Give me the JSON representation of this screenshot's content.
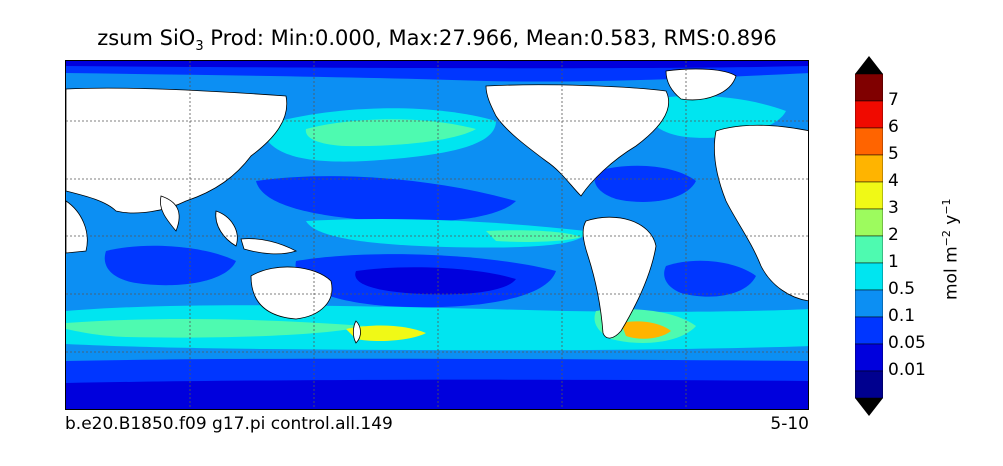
{
  "title": {
    "prefix": "zsum SiO",
    "subscript": "3",
    "suffix": "  Prod: Min:0.000, Max:27.966, Mean:0.583, RMS:0.896"
  },
  "footer": {
    "case_name": "b.e20.B1850.f09 g17.pi control.all.149",
    "years": "5-10"
  },
  "colorbar": {
    "units_prefix": "mol m",
    "units_exp1": "−2",
    "units_mid": " y",
    "units_exp2": "−1",
    "levels": [
      "0.01",
      "0.05",
      "0.1",
      "0.5",
      "1",
      "2",
      "3",
      "4",
      "5",
      "6",
      "7"
    ],
    "colors": [
      "#00008f",
      "#0000dd",
      "#0036ff",
      "#0c8ff3",
      "#00e5f0",
      "#4efab0",
      "#9dfb5e",
      "#f0f916",
      "#ffb400",
      "#ff6400",
      "#f00a00",
      "#800000"
    ]
  },
  "colors": {
    "land": "#ffffff",
    "deep_low": "#0036ff",
    "mid": "#0c8ff3",
    "high": "#00e5f0",
    "green": "#4efab0"
  }
}
